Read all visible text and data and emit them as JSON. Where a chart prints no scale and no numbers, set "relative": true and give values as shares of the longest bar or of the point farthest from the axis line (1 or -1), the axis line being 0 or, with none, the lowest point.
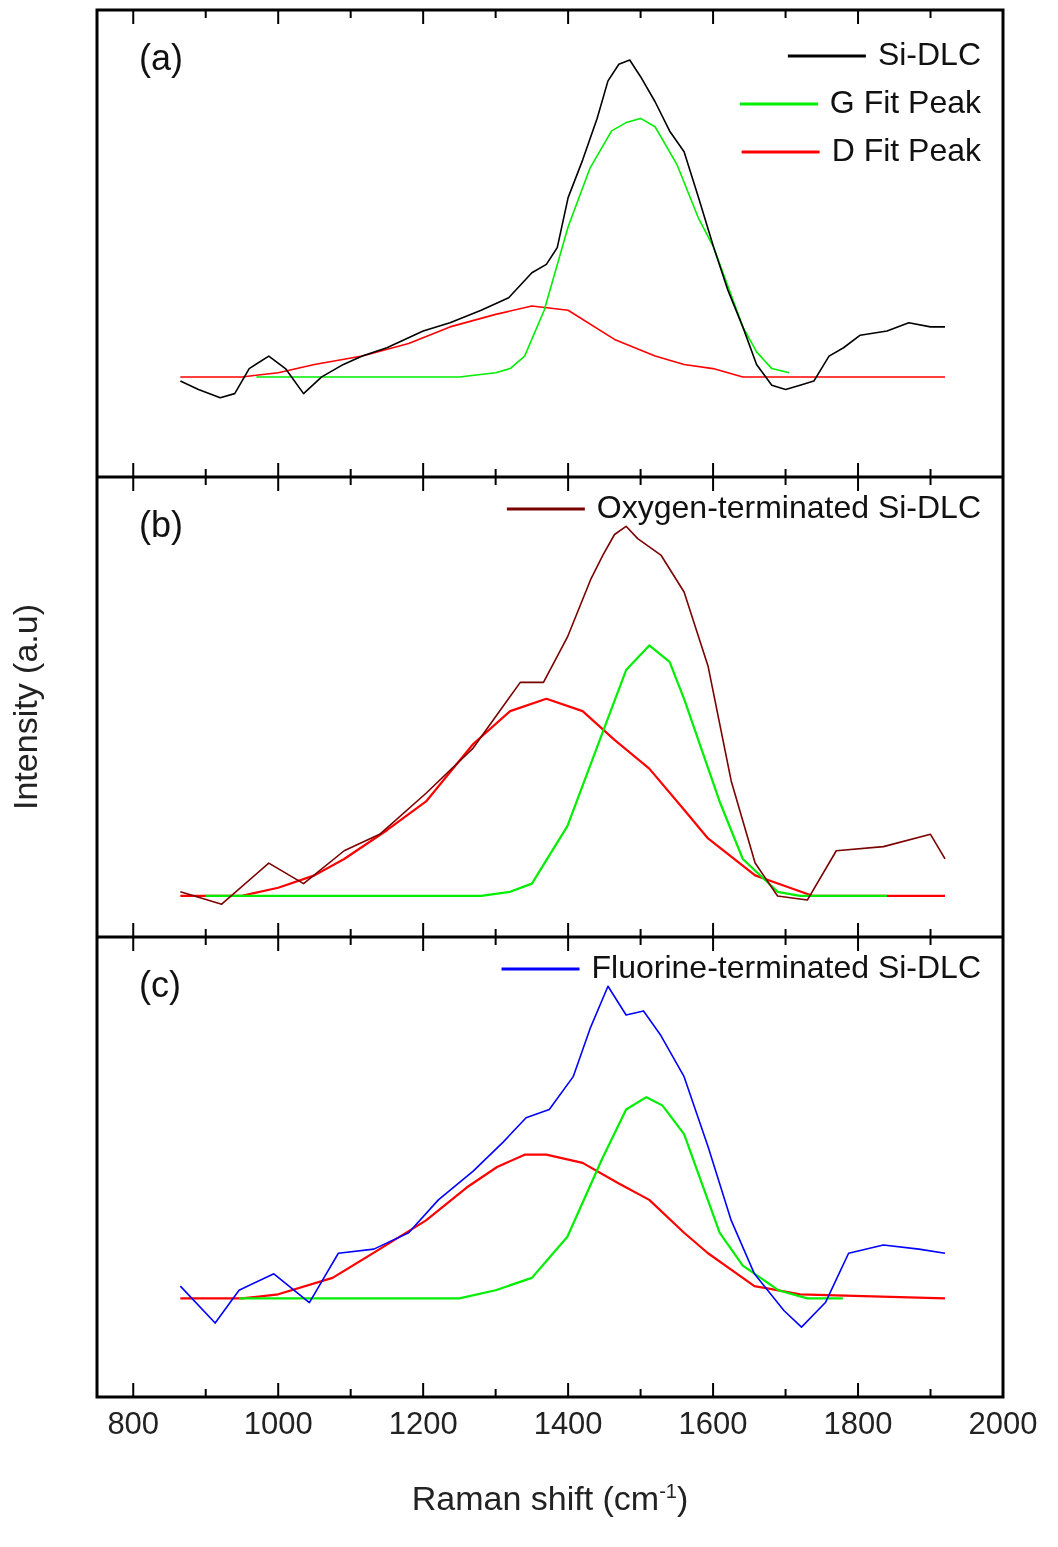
{
  "chart_data": [
    {
      "type": "line",
      "relative": true,
      "annotations": [
        "(a)"
      ],
      "legend": "top right",
      "marker": "none",
      "tick_labels": false,
      "xlim": [
        750,
        2000
      ],
      "xticks": [
        800,
        {
          "value": 900,
          "label": null
        },
        1000,
        {
          "value": 1100,
          "label": null
        },
        1200,
        {
          "value": 1300,
          "label": null
        },
        1400,
        {
          "value": 1500,
          "label": null
        },
        1600,
        {
          "value": 1700,
          "label": null
        },
        1800,
        {
          "value": 1900,
          "label": null
        },
        2000
      ],
      "series": [
        {
          "name": "Si-DLC",
          "color": "#000000",
          "x": [
            865,
            890,
            920,
            940,
            960,
            987,
            1010,
            1035,
            1060,
            1090,
            1116,
            1150,
            1200,
            1237,
            1280,
            1318,
            1350,
            1370,
            1385,
            1400,
            1420,
            1440,
            1455,
            1470,
            1485,
            1500,
            1520,
            1540,
            1560,
            1580,
            1601,
            1620,
            1641,
            1660,
            1681,
            1700,
            1720,
            1739,
            1760,
            1780,
            1803,
            1840,
            1870,
            1900,
            1920
          ],
          "values": [
            0.23,
            0.21,
            0.19,
            0.2,
            0.26,
            0.29,
            0.26,
            0.2,
            0.24,
            0.27,
            0.29,
            0.31,
            0.35,
            0.37,
            0.4,
            0.43,
            0.49,
            0.51,
            0.55,
            0.67,
            0.76,
            0.86,
            0.95,
            0.99,
            1.0,
            0.96,
            0.9,
            0.83,
            0.78,
            0.67,
            0.55,
            0.45,
            0.36,
            0.27,
            0.22,
            0.21,
            0.22,
            0.23,
            0.29,
            0.31,
            0.34,
            0.35,
            0.37,
            0.36,
            0.36
          ]
        },
        {
          "name": "G Fit Peak",
          "color": "#00ee00",
          "x": [
            970,
            1250,
            1300,
            1320,
            1340,
            1367,
            1400,
            1430,
            1460,
            1480,
            1500,
            1520,
            1550,
            1580,
            1601,
            1620,
            1641,
            1660,
            1681,
            1705
          ],
          "values": [
            0.24,
            0.24,
            0.25,
            0.26,
            0.29,
            0.4,
            0.6,
            0.74,
            0.83,
            0.85,
            0.86,
            0.84,
            0.75,
            0.62,
            0.55,
            0.46,
            0.36,
            0.3,
            0.26,
            0.25
          ]
        },
        {
          "name": "D Fit Peak",
          "color": "#ff0000",
          "x": [
            865,
            950,
            1000,
            1050,
            1116,
            1180,
            1237,
            1300,
            1350,
            1400,
            1464,
            1520,
            1560,
            1600,
            1641,
            1700,
            1920
          ],
          "values": [
            0.24,
            0.24,
            0.25,
            0.27,
            0.29,
            0.32,
            0.36,
            0.39,
            0.41,
            0.4,
            0.33,
            0.29,
            0.27,
            0.26,
            0.24,
            0.24,
            0.24
          ]
        }
      ]
    },
    {
      "type": "line",
      "relative": true,
      "annotations": [
        "(b)"
      ],
      "legend": "top right",
      "marker": "none",
      "tick_labels": false,
      "ylabel": "Intensity (a.u)",
      "xlim": [
        750,
        2000
      ],
      "xticks": [
        800,
        {
          "value": 900,
          "label": null
        },
        1000,
        {
          "value": 1100,
          "label": null
        },
        1200,
        {
          "value": 1300,
          "label": null
        },
        1400,
        {
          "value": 1500,
          "label": null
        },
        1600,
        {
          "value": 1700,
          "label": null
        },
        1800,
        {
          "value": 1900,
          "label": null
        },
        2000
      ],
      "series": [
        {
          "name": "Oxygen-terminated Si-DLC",
          "color": "#7b0000",
          "x": [
            865,
            922,
            987,
            1035,
            1091,
            1140,
            1204,
            1269,
            1334,
            1366,
            1399,
            1431,
            1448,
            1464,
            1480,
            1496,
            1528,
            1560,
            1593,
            1625,
            1658,
            1689,
            1730,
            1770,
            1835,
            1900,
            1920
          ],
          "values": [
            0.11,
            0.08,
            0.18,
            0.13,
            0.21,
            0.25,
            0.35,
            0.46,
            0.62,
            0.62,
            0.73,
            0.87,
            0.93,
            0.98,
            1.0,
            0.97,
            0.93,
            0.84,
            0.66,
            0.38,
            0.18,
            0.1,
            0.09,
            0.21,
            0.22,
            0.25,
            0.19
          ]
        },
        {
          "color": "#00ee00",
          "x": [
            900,
            1280,
            1320,
            1350,
            1399,
            1448,
            1480,
            1512,
            1540,
            1560,
            1609,
            1641,
            1689,
            1720,
            1840
          ],
          "values": [
            0.1,
            0.1,
            0.11,
            0.13,
            0.27,
            0.5,
            0.65,
            0.71,
            0.67,
            0.58,
            0.33,
            0.19,
            0.11,
            0.1,
            0.1
          ]
        },
        {
          "color": "#ff0000",
          "x": [
            865,
            950,
            1000,
            1050,
            1091,
            1150,
            1204,
            1269,
            1320,
            1370,
            1420,
            1464,
            1512,
            1560,
            1593,
            1658,
            1738,
            1920
          ],
          "values": [
            0.1,
            0.1,
            0.12,
            0.15,
            0.19,
            0.26,
            0.33,
            0.47,
            0.55,
            0.58,
            0.55,
            0.48,
            0.41,
            0.31,
            0.24,
            0.15,
            0.1,
            0.1
          ]
        }
      ]
    },
    {
      "type": "line",
      "relative": true,
      "annotations": [
        "(c)"
      ],
      "legend": "top right",
      "marker": "none",
      "tick_labels": "x",
      "xlabel": "Raman shift (cm$^{-1}$)",
      "xlim": [
        750,
        2000
      ],
      "xticks": [
        800,
        {
          "value": 900,
          "label": null
        },
        1000,
        {
          "value": 1100,
          "label": null
        },
        1200,
        {
          "value": 1300,
          "label": null
        },
        1400,
        {
          "value": 1500,
          "label": null
        },
        1600,
        {
          "value": 1700,
          "label": null
        },
        1800,
        {
          "value": 1900,
          "label": null
        },
        2000
      ],
      "series": [
        {
          "name": "Fluorine-terminated Si-DLC",
          "color": "#0000ff",
          "x": [
            865,
            913,
            946,
            994,
            1043,
            1083,
            1132,
            1180,
            1221,
            1269,
            1310,
            1342,
            1374,
            1407,
            1431,
            1455,
            1480,
            1504,
            1528,
            1560,
            1593,
            1625,
            1657,
            1698,
            1722,
            1755,
            1787,
            1835,
            1884,
            1920
          ],
          "values": [
            0.27,
            0.18,
            0.26,
            0.3,
            0.23,
            0.35,
            0.36,
            0.4,
            0.48,
            0.55,
            0.62,
            0.68,
            0.7,
            0.78,
            0.9,
            1.0,
            0.93,
            0.94,
            0.88,
            0.78,
            0.61,
            0.43,
            0.3,
            0.21,
            0.17,
            0.23,
            0.35,
            0.37,
            0.36,
            0.35
          ]
        },
        {
          "color": "#00ee00",
          "x": [
            946,
            1250,
            1300,
            1350,
            1399,
            1447,
            1480,
            1508,
            1530,
            1560,
            1609,
            1641,
            1690,
            1730,
            1779
          ],
          "values": [
            0.24,
            0.24,
            0.26,
            0.29,
            0.39,
            0.58,
            0.7,
            0.73,
            0.71,
            0.64,
            0.4,
            0.32,
            0.26,
            0.24,
            0.24
          ]
        },
        {
          "color": "#ff0000",
          "x": [
            865,
            950,
            1000,
            1075,
            1140,
            1204,
            1260,
            1302,
            1340,
            1370,
            1420,
            1470,
            1512,
            1560,
            1593,
            1657,
            1720,
            1920
          ],
          "values": [
            0.24,
            0.24,
            0.25,
            0.29,
            0.36,
            0.43,
            0.51,
            0.56,
            0.59,
            0.59,
            0.57,
            0.52,
            0.48,
            0.4,
            0.35,
            0.27,
            0.25,
            0.24
          ]
        }
      ]
    }
  ]
}
